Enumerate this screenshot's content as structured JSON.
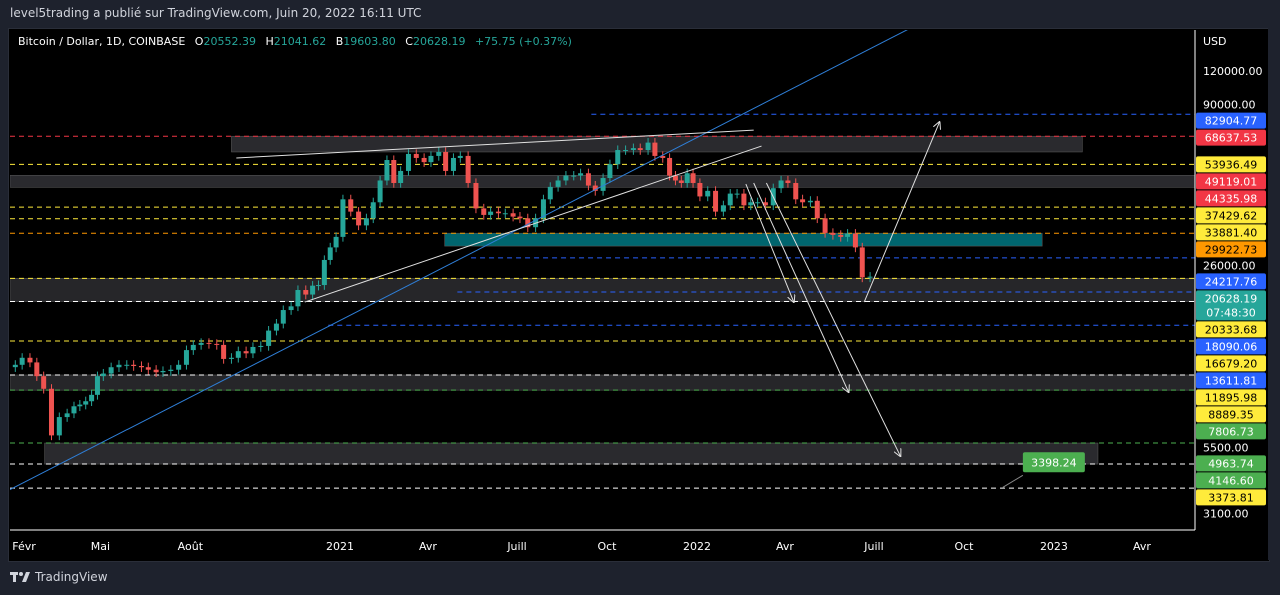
{
  "header": {
    "published": "level5trading a publié sur TradingView.com, Juin 20, 2022 16:11 UTC"
  },
  "legend": {
    "symbol": "Bitcoin / Dollar, 1D, COINBASE",
    "o_label": "O",
    "o": "20552.39",
    "h_label": "H",
    "h": "21041.62",
    "b_label": "B",
    "b": "19603.80",
    "c_label": "C",
    "c": "20628.19",
    "change": "+75.75 (+0.37%)"
  },
  "footer": {
    "brand": "TradingView"
  },
  "chart_data": {
    "type": "candlestick",
    "yscale": "log",
    "ylabel": "USD",
    "ylim": [
      2500,
      220000
    ],
    "xlim": [
      "2020-01-28",
      "2024-05-20"
    ],
    "yticks": [
      {
        "v": 120000,
        "t": "120000.00"
      },
      {
        "v": 90000,
        "t": "90000.00"
      },
      {
        "v": 26000,
        "t": "26000.00"
      },
      {
        "v": 5500,
        "t": "5500.00"
      },
      {
        "v": 3100,
        "t": "3100.00"
      }
    ],
    "xticks": [
      {
        "d": "2020-02-01",
        "t": "Févr"
      },
      {
        "d": "2020-05-01",
        "t": "Mai"
      },
      {
        "d": "2020-08-01",
        "t": "Août"
      },
      {
        "d": "2021-01-01",
        "t": "2021"
      },
      {
        "d": "2021-04-01",
        "t": "Avr"
      },
      {
        "d": "2021-07-01",
        "t": "Juill"
      },
      {
        "d": "2021-10-01",
        "t": "Oct"
      },
      {
        "d": "2022-01-01",
        "t": "2022"
      },
      {
        "d": "2022-04-01",
        "t": "Avr"
      },
      {
        "d": "2022-07-01",
        "t": "Juill"
      },
      {
        "d": "2022-10-01",
        "t": "Oct"
      },
      {
        "d": "2023-01-01",
        "t": "2023"
      },
      {
        "d": "2023-04-01",
        "t": "Avr"
      }
    ],
    "monthly_weekly_closes": [
      {
        "m": "2020-02",
        "c": [
          9700,
          10300,
          9900,
          8800
        ]
      },
      {
        "m": "2020-03",
        "c": [
          7900,
          5300,
          6200,
          6400
        ]
      },
      {
        "m": "2020-04",
        "c": [
          6800,
          6900,
          7100,
          7500,
          8800
        ]
      },
      {
        "m": "2020-05",
        "c": [
          9000,
          9500,
          9700,
          9700
        ]
      },
      {
        "m": "2020-06",
        "c": [
          9600,
          9500,
          9300,
          9100
        ]
      },
      {
        "m": "2020-07",
        "c": [
          9200,
          9300,
          9700,
          11000
        ]
      },
      {
        "m": "2020-08",
        "c": [
          11500,
          11700,
          11600,
          11500
        ]
      },
      {
        "m": "2020-09",
        "c": [
          10200,
          10300,
          10900,
          10700
        ]
      },
      {
        "m": "2020-10",
        "c": [
          11300,
          11400,
          13000,
          13800
        ]
      },
      {
        "m": "2020-11",
        "c": [
          15500,
          16000,
          18400,
          17700
        ]
      },
      {
        "m": "2020-12",
        "c": [
          19100,
          19200,
          23800,
          26500,
          29000
        ]
      },
      {
        "m": "2021-01",
        "c": [
          40000,
          36000,
          32000,
          34000
        ]
      },
      {
        "m": "2021-02",
        "c": [
          39000,
          47000,
          56000,
          46000
        ]
      },
      {
        "m": "2021-03",
        "c": [
          51000,
          59000,
          57000,
          55000
        ]
      },
      {
        "m": "2021-04",
        "c": [
          58000,
          60000,
          51000,
          57000
        ]
      },
      {
        "m": "2021-05",
        "c": [
          58000,
          46000,
          37000,
          35000
        ]
      },
      {
        "m": "2021-06",
        "c": [
          36000,
          35500,
          35500,
          34500
        ]
      },
      {
        "m": "2021-07",
        "c": [
          34000,
          31500,
          34000,
          40000
        ]
      },
      {
        "m": "2021-08",
        "c": [
          44500,
          47000,
          49000,
          49000
        ]
      },
      {
        "m": "2021-09",
        "c": [
          50000,
          45000,
          43000,
          48000
        ]
      },
      {
        "m": "2021-10",
        "c": [
          54000,
          61000,
          61000,
          62000
        ]
      },
      {
        "m": "2021-11",
        "c": [
          61000,
          65000,
          58000,
          57000
        ]
      },
      {
        "m": "2021-12",
        "c": [
          49000,
          47000,
          46000,
          50000,
          46000
        ]
      },
      {
        "m": "2022-01",
        "c": [
          41000,
          43000,
          36000,
          38000
        ]
      },
      {
        "m": "2022-02",
        "c": [
          42000,
          42000,
          38000,
          39000
        ]
      },
      {
        "m": "2022-03",
        "c": [
          39000,
          38000,
          44000,
          47000
        ]
      },
      {
        "m": "2022-04",
        "c": [
          46000,
          40000,
          39000,
          39500
        ]
      },
      {
        "m": "2022-05",
        "c": [
          34000,
          30000,
          29500,
          29000
        ]
      },
      {
        "m": "2022-06",
        "c": [
          29800,
          26500,
          20500,
          20628.19
        ]
      }
    ],
    "price_levels": [
      {
        "v": 82904.77,
        "t": "82904.77",
        "color": "#2962ff",
        "text": "#fff",
        "from": "2021-09-15"
      },
      {
        "v": 68637.53,
        "t": "68637.53",
        "color": "#f23645",
        "text": "#fff"
      },
      {
        "v": 53936.49,
        "t": "53936.49",
        "color": "#ffeb3b",
        "text": "#000"
      },
      {
        "v": 49119.01,
        "t": "49119.01",
        "color": "#f23645",
        "text": "#fff",
        "noline": true
      },
      {
        "v": 44335.98,
        "t": "44335.98",
        "color": "#f23645",
        "text": "#fff",
        "noline": true
      },
      {
        "v": 37429.62,
        "t": "37429.62",
        "color": "#ffeb3b",
        "text": "#000"
      },
      {
        "v": 33881.4,
        "t": "33881.40",
        "color": "#ffeb3b",
        "text": "#000"
      },
      {
        "v": 29922.73,
        "t": "29922.73",
        "color": "#ff9800",
        "text": "#000"
      },
      {
        "v": 24217.76,
        "t": "24217.76",
        "color": "#2962ff",
        "text": "#fff",
        "from": "2021-05-15"
      },
      {
        "v": 20628.19,
        "t": "20628.19",
        "t2": "07:48:30",
        "color": "#26a69a",
        "text": "#fff",
        "noline": true
      },
      {
        "v": 20333.68,
        "t": "20333.68",
        "color": "#ffeb3b",
        "text": "#000"
      },
      {
        "v": 18090.06,
        "t": "18090.06",
        "color": "#2962ff",
        "text": "#fff",
        "from": "2021-05-01"
      },
      {
        "v": 16679.2,
        "t": "16679.20",
        "color": "#ffeb3b",
        "text": "#000",
        "line": "#ffffff"
      },
      {
        "v": 13611.81,
        "t": "13611.81",
        "color": "#2962ff",
        "text": "#fff",
        "from": "2020-12-20"
      },
      {
        "v": 11895.98,
        "t": "11895.98",
        "color": "#ffeb3b",
        "text": "#000"
      },
      {
        "v": 8889.35,
        "t": "8889.35",
        "color": "#ffeb3b",
        "text": "#000",
        "line": "#ffffff"
      },
      {
        "v": 7806.73,
        "t": "7806.73",
        "color": "#4caf50",
        "text": "#fff"
      },
      {
        "v": 4963.74,
        "t": "4963.74",
        "color": "#4caf50",
        "text": "#fff"
      },
      {
        "v": 4146.6,
        "t": "4146.60",
        "color": "#4caf50",
        "text": "#fff",
        "line": "#ffffff"
      },
      {
        "v": 3373.81,
        "t": "3373.81",
        "color": "#ffeb3b",
        "text": "#000",
        "line": "#ffffff"
      }
    ],
    "zones": [
      {
        "from": "2020-09-12",
        "to": "2023-01-30",
        "top": 68637.53,
        "bottom": 60000,
        "color": "#2a2a2e"
      },
      {
        "top": 49119.01,
        "bottom": 44335.98,
        "color": "#2a2a2e"
      },
      {
        "from": "2021-04-18",
        "to": "2022-12-20",
        "top": 29922.73,
        "bottom": 26800,
        "color": "#00656e"
      },
      {
        "top": 20333.68,
        "bottom": 16679.2,
        "color": "#262629"
      },
      {
        "top": 8889.35,
        "bottom": 7806.73,
        "color": "#262629"
      },
      {
        "from": "2020-03-05",
        "to": "2023-02-15",
        "top": 4963.74,
        "bottom": 4146.6,
        "color": "#2a2a2e"
      }
    ],
    "trendlines": [
      {
        "a": [
          "2020-01-29",
          3324
        ],
        "b": [
          "2022-10-02",
          220000
        ],
        "color": "#2f7fd8"
      },
      {
        "a": [
          "2020-09-17",
          57000
        ],
        "b": [
          "2022-02-28",
          72300
        ],
        "color": "#e0e0e0"
      },
      {
        "a": [
          "2020-11-26",
          16600
        ],
        "b": [
          "2022-03-08",
          63100
        ],
        "color": "#e0e0e0"
      },
      {
        "a": [
          "2022-02-20",
          45600
        ],
        "b": [
          "2022-04-10",
          16600
        ],
        "color": "#e0e0e0",
        "arrow": true
      },
      {
        "a": [
          "2022-02-28",
          46000
        ],
        "b": [
          "2022-06-05",
          7680
        ],
        "color": "#e0e0e0",
        "arrow": true
      },
      {
        "a": [
          "2022-03-13",
          46000
        ],
        "b": [
          "2022-07-28",
          4440
        ],
        "color": "#e0e0e0",
        "arrow": true
      },
      {
        "a": [
          "2022-06-21",
          16600
        ],
        "b": [
          "2022-09-06",
          77500
        ],
        "color": "#e0e0e0",
        "arrow": true
      }
    ],
    "callout": {
      "label": "3398.24",
      "date": "2022-11-20",
      "price": 3398.24,
      "color": "#4caf50"
    }
  }
}
